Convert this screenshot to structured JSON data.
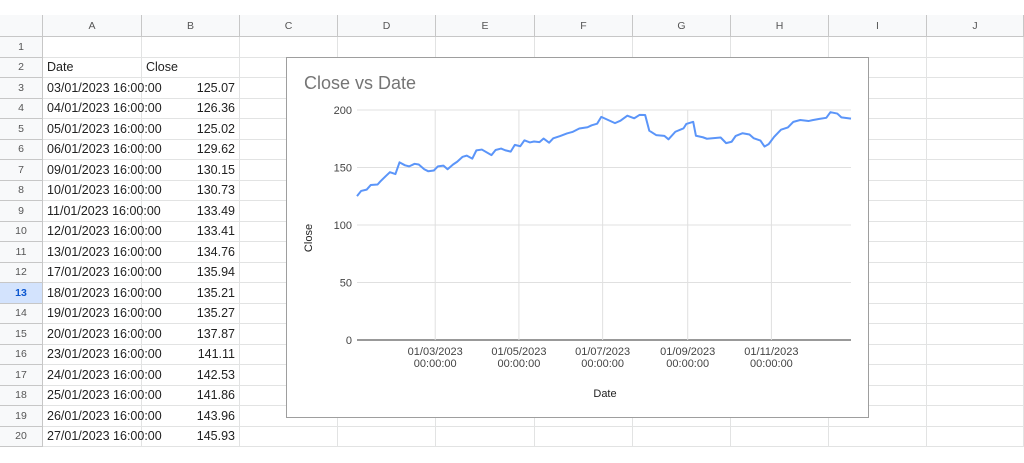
{
  "spreadsheet": {
    "columns": [
      "A",
      "B",
      "C",
      "D",
      "E",
      "F",
      "G",
      "H",
      "I",
      "J"
    ],
    "row_headers": [
      1,
      2,
      3,
      4,
      5,
      6,
      7,
      8,
      9,
      10,
      11,
      12,
      13,
      14,
      15,
      16,
      17,
      18,
      19,
      20
    ],
    "active_row": 13,
    "table": {
      "header": [
        "Date",
        "Close"
      ],
      "rows": [
        [
          "03/01/2023 16:00:00",
          125.07
        ],
        [
          "04/01/2023 16:00:00",
          126.36
        ],
        [
          "05/01/2023 16:00:00",
          125.02
        ],
        [
          "06/01/2023 16:00:00",
          129.62
        ],
        [
          "09/01/2023 16:00:00",
          130.15
        ],
        [
          "10/01/2023 16:00:00",
          130.73
        ],
        [
          "11/01/2023 16:00:00",
          133.49
        ],
        [
          "12/01/2023 16:00:00",
          133.41
        ],
        [
          "13/01/2023 16:00:00",
          134.76
        ],
        [
          "17/01/2023 16:00:00",
          135.94
        ],
        [
          "18/01/2023 16:00:00",
          135.21
        ],
        [
          "19/01/2023 16:00:00",
          135.27
        ],
        [
          "20/01/2023 16:00:00",
          137.87
        ],
        [
          "23/01/2023 16:00:00",
          141.11
        ],
        [
          "24/01/2023 16:00:00",
          142.53
        ],
        [
          "25/01/2023 16:00:00",
          141.86
        ],
        [
          "26/01/2023 16:00:00",
          143.96
        ],
        [
          "27/01/2023 16:00:00",
          145.93
        ]
      ]
    }
  },
  "chart_data": {
    "type": "line",
    "title": "Close vs Date",
    "x_label": "Date",
    "y_label": "Close",
    "color": "#5b95f9",
    "grid": true,
    "x": [
      "03/01/2023",
      "06/01/2023",
      "10/01/2023",
      "13/01/2023",
      "18/01/2023",
      "20/01/2023",
      "24/01/2023",
      "27/01/2023",
      "31/01/2023",
      "03/02/2023",
      "07/02/2023",
      "10/02/2023",
      "14/02/2023",
      "17/02/2023",
      "21/02/2023",
      "24/02/2023",
      "28/02/2023",
      "03/03/2023",
      "07/03/2023",
      "10/03/2023",
      "14/03/2023",
      "17/03/2023",
      "21/03/2023",
      "24/03/2023",
      "28/03/2023",
      "31/03/2023",
      "04/04/2023",
      "11/04/2023",
      "14/04/2023",
      "18/04/2023",
      "21/04/2023",
      "25/04/2023",
      "28/04/2023",
      "02/05/2023",
      "05/05/2023",
      "09/05/2023",
      "12/05/2023",
      "16/05/2023",
      "19/05/2023",
      "23/05/2023",
      "26/05/2023",
      "31/05/2023",
      "05/06/2023",
      "09/06/2023",
      "14/06/2023",
      "20/06/2023",
      "23/06/2023",
      "27/06/2023",
      "30/06/2023",
      "05/07/2023",
      "10/07/2023",
      "14/07/2023",
      "19/07/2023",
      "24/07/2023",
      "28/07/2023",
      "01/08/2023",
      "04/08/2023",
      "09/08/2023",
      "15/08/2023",
      "18/08/2023",
      "23/08/2023",
      "29/08/2023",
      "31/08/2023",
      "05/09/2023",
      "07/09/2023",
      "12/09/2023",
      "15/09/2023",
      "20/09/2023",
      "25/09/2023",
      "29/09/2023",
      "03/10/2023",
      "06/10/2023",
      "11/10/2023",
      "16/10/2023",
      "19/10/2023",
      "24/10/2023",
      "27/10/2023",
      "30/10/2023",
      "03/11/2023",
      "08/11/2023",
      "13/11/2023",
      "17/11/2023",
      "22/11/2023",
      "28/11/2023",
      "01/12/2023",
      "06/12/2023",
      "11/12/2023",
      "14/12/2023",
      "19/12/2023",
      "22/12/2023",
      "29/12/2023"
    ],
    "values": [
      125.07,
      129.62,
      130.73,
      134.76,
      135.21,
      137.87,
      142.53,
      145.93,
      144.3,
      154.5,
      151.9,
      151.0,
      153.2,
      152.6,
      148.5,
      146.7,
      147.4,
      151.0,
      151.6,
      148.5,
      152.6,
      155.0,
      159.3,
      160.3,
      157.7,
      164.9,
      165.6,
      160.8,
      165.2,
      166.5,
      165.0,
      163.8,
      169.7,
      168.5,
      173.6,
      171.8,
      172.6,
      172.1,
      175.2,
      171.6,
      175.4,
      177.3,
      179.6,
      180.9,
      183.9,
      185.0,
      186.7,
      188.1,
      194.0,
      191.3,
      188.6,
      190.7,
      195.1,
      192.8,
      195.8,
      195.6,
      182.0,
      178.2,
      177.5,
      174.5,
      181.1,
      184.1,
      187.9,
      189.7,
      177.6,
      176.3,
      175.0,
      175.5,
      176.1,
      171.2,
      172.4,
      177.5,
      179.8,
      178.7,
      175.5,
      173.4,
      168.2,
      170.3,
      176.7,
      182.9,
      184.8,
      189.7,
      191.3,
      190.4,
      191.2,
      192.3,
      193.2,
      198.1,
      196.9,
      193.6,
      192.5
    ],
    "xlim": [
      "03/01/2023",
      "29/12/2023"
    ],
    "xticks": [
      {
        "value": "01/03/2023",
        "label": "01/03/2023 00:00:00"
      },
      {
        "value": "01/05/2023",
        "label": "01/05/2023 00:00:00"
      },
      {
        "value": "01/07/2023",
        "label": "01/07/2023 00:00:00"
      },
      {
        "value": "01/09/2023",
        "label": "01/09/2023 00:00:00"
      },
      {
        "value": "01/11/2023",
        "label": "01/11/2023 00:00:00"
      }
    ],
    "ylim": [
      0,
      200
    ],
    "yticks": [
      0,
      50,
      100,
      150,
      200
    ]
  }
}
